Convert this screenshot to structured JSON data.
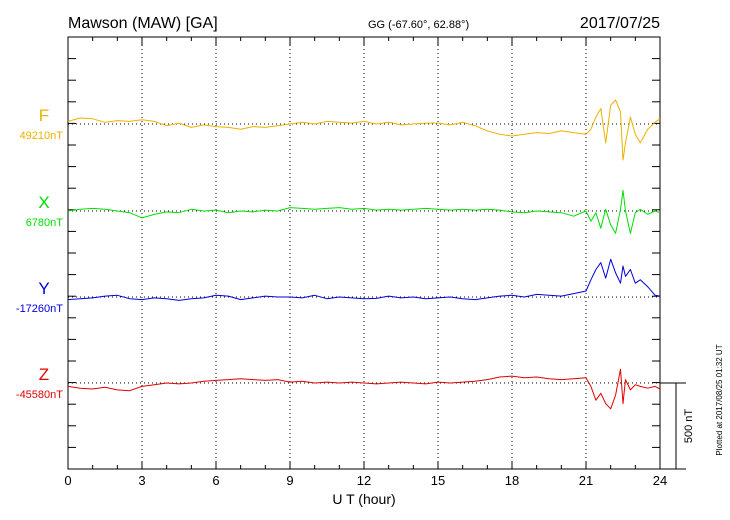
{
  "header": {
    "station": "Mawson (MAW)  [GA]",
    "coords": "GG (-67.60°,  62.88°)",
    "date": "2017/07/25"
  },
  "side_note": "Plotted at 2017/08/25 01:32 UT",
  "scale_label": "500 nT",
  "colors": {
    "F": "#f0b000",
    "X": "#00e000",
    "Y": "#0000e0",
    "Z": "#e00000",
    "grid": "#000000"
  },
  "chart_data": {
    "type": "line",
    "xlabel": "U T (hour)",
    "xlim": [
      0,
      24
    ],
    "xticks": [
      "0",
      "3",
      "6",
      "9",
      "12",
      "15",
      "18",
      "21",
      "24"
    ],
    "grid": true,
    "scale_nT": 500,
    "series": [
      {
        "name": "F",
        "baseline_label": "49210nT",
        "baseline_nT": 49210,
        "x": [
          0,
          0.5,
          1,
          1.5,
          2,
          2.5,
          3,
          3.5,
          4,
          4.5,
          5,
          5.5,
          6,
          6.5,
          7,
          7.5,
          8,
          8.5,
          9,
          9.5,
          10,
          10.5,
          11,
          11.5,
          12,
          12.5,
          13,
          13.5,
          14,
          14.5,
          15,
          15.5,
          16,
          16.5,
          17,
          17.5,
          18,
          18.5,
          19,
          19.5,
          20,
          20.5,
          21,
          21.2,
          21.4,
          21.6,
          21.8,
          22,
          22.2,
          22.4,
          22.5,
          22.6,
          22.8,
          23,
          23.2,
          23.5,
          23.8,
          24
        ],
        "y": [
          49225,
          49245,
          49240,
          49220,
          49230,
          49225,
          49235,
          49225,
          49200,
          49215,
          49190,
          49205,
          49195,
          49190,
          49180,
          49195,
          49190,
          49200,
          49210,
          49220,
          49210,
          49225,
          49220,
          49215,
          49225,
          49210,
          49220,
          49205,
          49210,
          49215,
          49215,
          49205,
          49220,
          49200,
          49170,
          49150,
          49140,
          49150,
          49160,
          49155,
          49170,
          49160,
          49150,
          49180,
          49250,
          49300,
          49100,
          49320,
          49350,
          49280,
          49000,
          49100,
          49250,
          49150,
          49100,
          49180,
          49220,
          49240
        ]
      },
      {
        "name": "X",
        "baseline_label": "6780nT",
        "baseline_nT": 6780,
        "x": [
          0,
          0.5,
          1,
          1.5,
          2,
          2.5,
          3,
          3.5,
          4,
          4.5,
          5,
          5.5,
          6,
          6.5,
          7,
          7.5,
          8,
          8.5,
          9,
          9.5,
          10,
          10.5,
          11,
          11.5,
          12,
          12.5,
          13,
          13.5,
          14,
          14.5,
          15,
          15.5,
          16,
          16.5,
          17,
          17.5,
          18,
          18.5,
          19,
          19.5,
          20,
          20.5,
          21,
          21.2,
          21.4,
          21.6,
          21.8,
          22,
          22.2,
          22.4,
          22.5,
          22.6,
          22.8,
          23,
          23.2,
          23.5,
          23.8,
          24
        ],
        "y": [
          6780,
          6790,
          6795,
          6790,
          6780,
          6770,
          6740,
          6760,
          6775,
          6770,
          6790,
          6780,
          6785,
          6770,
          6780,
          6775,
          6785,
          6780,
          6800,
          6795,
          6790,
          6795,
          6800,
          6790,
          6795,
          6785,
          6790,
          6785,
          6790,
          6795,
          6790,
          6785,
          6790,
          6785,
          6790,
          6785,
          6775,
          6770,
          6780,
          6775,
          6770,
          6750,
          6780,
          6720,
          6770,
          6680,
          6790,
          6700,
          6650,
          6790,
          6900,
          6780,
          6650,
          6770,
          6790,
          6760,
          6780,
          6770
        ]
      },
      {
        "name": "Y",
        "baseline_label": "-17260nT",
        "baseline_nT": -17260,
        "x": [
          0,
          0.5,
          1,
          1.5,
          2,
          2.5,
          3,
          3.5,
          4,
          4.5,
          5,
          5.5,
          6,
          6.5,
          7,
          7.5,
          8,
          8.5,
          9,
          9.5,
          10,
          10.5,
          11,
          11.5,
          12,
          12.5,
          13,
          13.5,
          14,
          14.5,
          15,
          15.5,
          16,
          16.5,
          17,
          17.5,
          18,
          18.5,
          19,
          19.5,
          20,
          20.5,
          21,
          21.2,
          21.4,
          21.6,
          21.8,
          22,
          22.2,
          22.4,
          22.5,
          22.6,
          22.8,
          23,
          23.2,
          23.5,
          23.8,
          24
        ],
        "y": [
          -17275,
          -17270,
          -17265,
          -17255,
          -17250,
          -17270,
          -17275,
          -17265,
          -17270,
          -17280,
          -17270,
          -17265,
          -17250,
          -17255,
          -17275,
          -17265,
          -17255,
          -17260,
          -17260,
          -17265,
          -17250,
          -17270,
          -17260,
          -17265,
          -17270,
          -17268,
          -17255,
          -17265,
          -17260,
          -17270,
          -17265,
          -17260,
          -17270,
          -17275,
          -17265,
          -17255,
          -17250,
          -17260,
          -17245,
          -17250,
          -17255,
          -17240,
          -17225,
          -17160,
          -17100,
          -17060,
          -17150,
          -17040,
          -17120,
          -17180,
          -17080,
          -17140,
          -17100,
          -17180,
          -17160,
          -17200,
          -17250,
          -17255
        ]
      },
      {
        "name": "Z",
        "baseline_label": "-45580nT",
        "baseline_nT": -45580,
        "x": [
          0,
          0.5,
          1,
          1.5,
          2,
          2.5,
          3,
          3.5,
          4,
          4.5,
          5,
          5.5,
          6,
          6.5,
          7,
          7.5,
          8,
          8.5,
          9,
          9.5,
          10,
          10.5,
          11,
          11.5,
          12,
          12.5,
          13,
          13.5,
          14,
          14.5,
          15,
          15.5,
          16,
          16.5,
          17,
          17.5,
          18,
          18.5,
          19,
          19.5,
          20,
          20.5,
          21,
          21.2,
          21.4,
          21.6,
          21.8,
          22,
          22.2,
          22.4,
          22.5,
          22.6,
          22.8,
          23,
          23.2,
          23.5,
          23.8,
          24
        ],
        "y": [
          -45600,
          -45610,
          -45615,
          -45605,
          -45620,
          -45625,
          -45600,
          -45590,
          -45580,
          -45585,
          -45580,
          -45570,
          -45565,
          -45560,
          -45555,
          -45560,
          -45565,
          -45560,
          -45575,
          -45570,
          -45580,
          -45575,
          -45580,
          -45575,
          -45580,
          -45585,
          -45580,
          -45575,
          -45580,
          -45585,
          -45575,
          -45580,
          -45575,
          -45570,
          -45560,
          -45545,
          -45540,
          -45550,
          -45545,
          -45555,
          -45560,
          -45555,
          -45550,
          -45600,
          -45680,
          -45640,
          -45700,
          -45730,
          -45650,
          -45500,
          -45700,
          -45560,
          -45620,
          -45590,
          -45600,
          -45610,
          -45600,
          -45615
        ]
      }
    ]
  }
}
